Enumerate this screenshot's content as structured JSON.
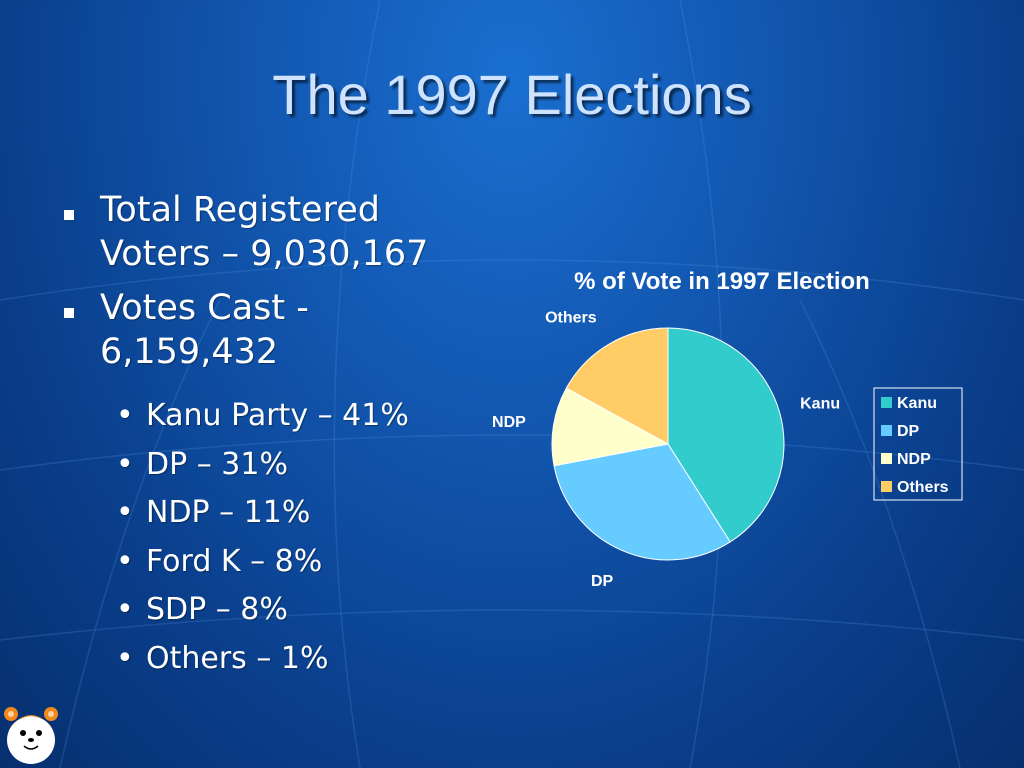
{
  "slide": {
    "title": "The 1997 Elections",
    "bullets": [
      {
        "line1": "Total Registered",
        "line2": "Voters – 9,030,167"
      },
      {
        "line1": "Votes Cast -",
        "line2": "6,159,432"
      }
    ],
    "sub_bullets": [
      "Kanu Party – 41%",
      "DP – 31%",
      "NDP – 11%",
      "Ford K – 8%",
      "SDP – 8%",
      "Others – 1%"
    ]
  },
  "chart_data": {
    "type": "pie",
    "title": "% of Vote in 1997 Election",
    "categories": [
      "Kanu",
      "DP",
      "NDP",
      "Others"
    ],
    "values": [
      41,
      31,
      11,
      17
    ],
    "colors": [
      "#33cccc",
      "#66ccff",
      "#ffffcc",
      "#ffcc66"
    ],
    "legend_position": "right"
  }
}
